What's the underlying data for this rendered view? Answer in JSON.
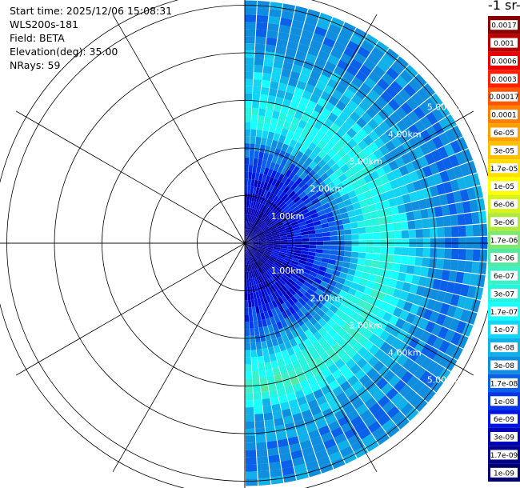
{
  "header": {
    "start_time": "Start time: 2025/12/06 15:08:31",
    "instrument": "WLS200s-181",
    "field": "Field: BETA",
    "elevation": "Elevation(deg): 35.00",
    "nrays": "NRays: 59"
  },
  "colorbar": {
    "title": "-1 sr-",
    "levels": [
      {
        "label": "0.0017",
        "color": "#8b0000"
      },
      {
        "label": "0.001",
        "color": "#b70000"
      },
      {
        "label": "0.0006",
        "color": "#e80000"
      },
      {
        "label": "0.0003",
        "color": "#ff2000"
      },
      {
        "label": "0.00017",
        "color": "#ff5500"
      },
      {
        "label": "0.0001",
        "color": "#ff8000"
      },
      {
        "label": "6e-05",
        "color": "#ff9f00"
      },
      {
        "label": "3e-05",
        "color": "#ffbf00"
      },
      {
        "label": "1.7e-05",
        "color": "#ffdf00"
      },
      {
        "label": "1e-05",
        "color": "#ffff00"
      },
      {
        "label": "6e-06",
        "color": "#d8f31a"
      },
      {
        "label": "3e-06",
        "color": "#b0e840"
      },
      {
        "label": "1.7e-06",
        "color": "#7fe870"
      },
      {
        "label": "1e-06",
        "color": "#55e8a0"
      },
      {
        "label": "6e-07",
        "color": "#3cf0c8"
      },
      {
        "label": "3e-07",
        "color": "#23f5e0"
      },
      {
        "label": "1.7e-07",
        "color": "#18ffff"
      },
      {
        "label": "1e-07",
        "color": "#12d5f5"
      },
      {
        "label": "6e-08",
        "color": "#10b0e8"
      },
      {
        "label": "3e-08",
        "color": "#0f8ee0"
      },
      {
        "label": "1.7e-08",
        "color": "#0a60e8"
      },
      {
        "label": "1e-08",
        "color": "#0535e8"
      },
      {
        "label": "6e-09",
        "color": "#0015e0"
      },
      {
        "label": "3e-09",
        "color": "#0000b8"
      },
      {
        "label": "1.7e-09",
        "color": "#00008c"
      },
      {
        "label": "1e-09",
        "color": "#000070"
      }
    ]
  },
  "chart_data": {
    "type": "polar",
    "field": "BETA",
    "elevation_deg": 35.0,
    "n_rays": 59,
    "azimuth_range_deg": [
      0,
      180
    ],
    "range_rings_km": [
      1,
      2,
      3,
      4,
      5
    ],
    "range_ring_labels": [
      "1.00km",
      "2.00km",
      "3.00km",
      "4.00km",
      "5.00km"
    ],
    "max_range_km": 5.1,
    "profile": {
      "range_km": [
        0,
        0.5,
        1.0,
        1.5,
        2.0,
        2.3,
        2.6,
        3.0,
        3.5,
        4.0,
        4.5,
        5.1
      ],
      "beta_north": [
        3e-09,
        3e-09,
        6e-09,
        1e-08,
        3e-08,
        1e-07,
        3e-07,
        1.7e-07,
        1e-07,
        6e-08,
        3e-08,
        6e-08
      ],
      "beta_south": [
        3e-09,
        3e-09,
        6e-09,
        1e-08,
        3e-08,
        1e-07,
        3e-07,
        1e-06,
        1e-07,
        6e-08,
        3e-08,
        6e-08
      ]
    }
  }
}
